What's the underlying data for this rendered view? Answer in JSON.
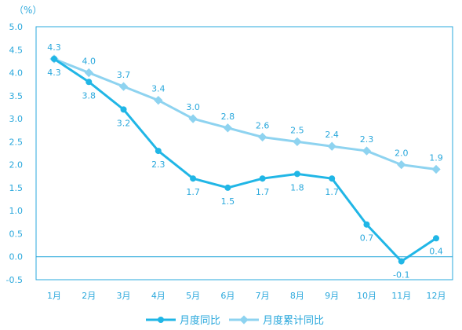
{
  "chart_data": {
    "type": "line",
    "unit_label": "（%）",
    "categories": [
      "1月",
      "2月",
      "3月",
      "4月",
      "5月",
      "6月",
      "7月",
      "8月",
      "9月",
      "10月",
      "11月",
      "12月"
    ],
    "ylim": [
      -0.5,
      5.0
    ],
    "yticks": [
      "5.0",
      "4.5",
      "4.0",
      "3.5",
      "3.0",
      "2.5",
      "2.0",
      "1.5",
      "1.0",
      "0.5",
      "0.0",
      "-0.5"
    ],
    "grid": false,
    "legend_position": "bottom",
    "series": [
      {
        "name": "月度同比",
        "color": "#20b6e6",
        "values": [
          4.3,
          3.8,
          3.2,
          2.3,
          1.7,
          1.5,
          1.7,
          1.8,
          1.7,
          0.7,
          -0.1,
          0.4
        ],
        "labels": [
          "4.3",
          "3.8",
          "3.2",
          "2.3",
          "1.7",
          "1.5",
          "1.7",
          "1.8",
          "1.7",
          "0.7",
          "-0.1",
          "0.4"
        ]
      },
      {
        "name": "月度累计同比",
        "color": "#8ed3f0",
        "values": [
          4.3,
          4.0,
          3.7,
          3.4,
          3.0,
          2.8,
          2.6,
          2.5,
          2.4,
          2.3,
          2.0,
          1.9
        ],
        "labels": [
          "4.3",
          "4.0",
          "3.7",
          "3.4",
          "3.0",
          "2.8",
          "2.6",
          "2.5",
          "2.4",
          "2.3",
          "2.0",
          "1.9"
        ]
      }
    ]
  }
}
